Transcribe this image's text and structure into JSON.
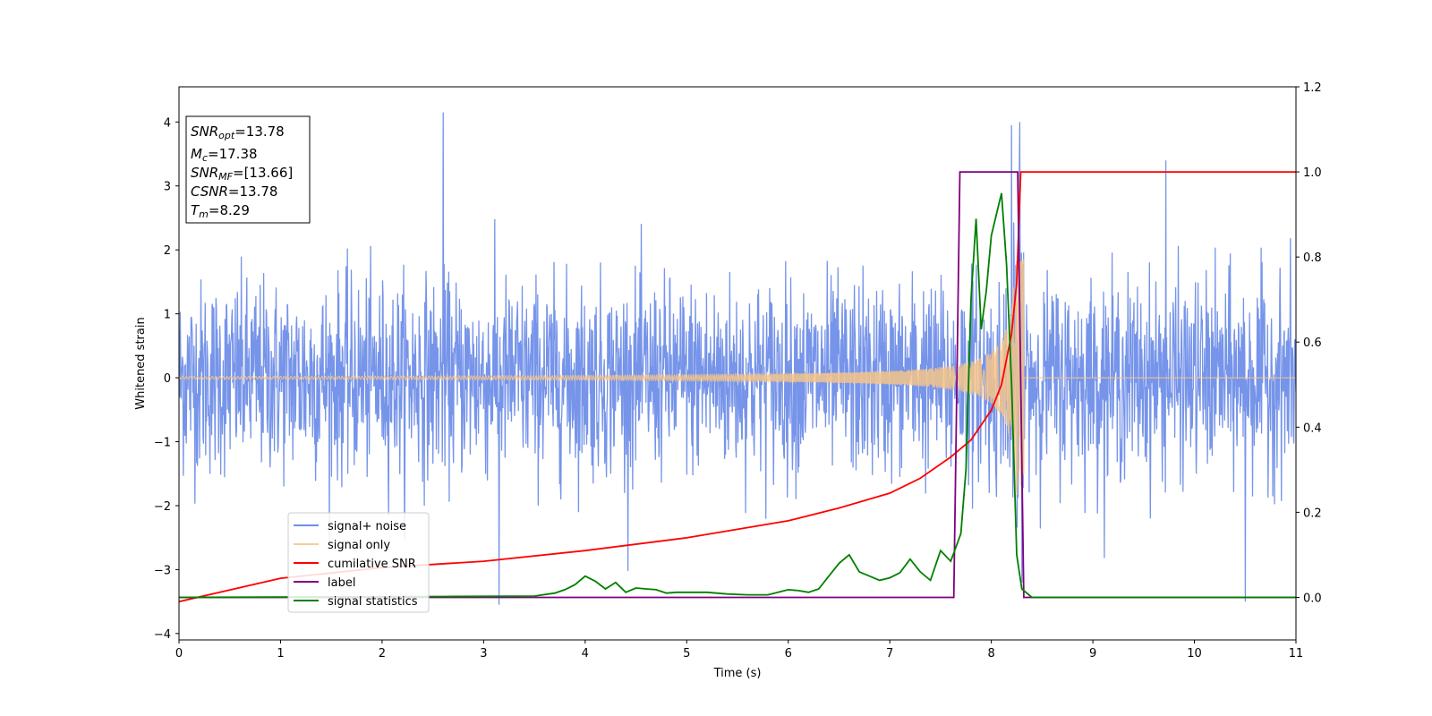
{
  "chart_data": {
    "type": "line",
    "xlabel": "Time (s)",
    "ylabel": "Whitened strain",
    "xlim": [
      0,
      11
    ],
    "ylim_left": [
      -4.1,
      4.55
    ],
    "ylim_right": [
      -0.1,
      1.2
    ],
    "xticks": [
      "0",
      "1",
      "2",
      "3",
      "4",
      "5",
      "6",
      "7",
      "8",
      "9",
      "10",
      "11"
    ],
    "yticks_left": [
      "−4",
      "−3",
      "−2",
      "−1",
      "0",
      "1",
      "2",
      "3",
      "4"
    ],
    "yticks_right": [
      "0.0",
      "0.2",
      "0.4",
      "0.6",
      "0.8",
      "1.0",
      "1.2"
    ],
    "grid": false,
    "legend_position": "lower-left",
    "info_box": {
      "lines": [
        {
          "base": "SNR",
          "sub": "opt",
          "value": "=13.78"
        },
        {
          "base": "M",
          "sub": "c",
          "value": "=17.38"
        },
        {
          "base": "SNR",
          "sub": "MF",
          "value": "=[13.66]"
        },
        {
          "base": "CSNR",
          "sub": "",
          "value": "=13.78"
        },
        {
          "base": "T",
          "sub": "m",
          "value": "=8.29"
        }
      ]
    },
    "series": [
      {
        "name": "signal+ noise",
        "axis": "left",
        "color": "#6f8ee8",
        "kind": "noise_plus_signal",
        "noise_band": [
          -1.6,
          1.9
        ],
        "notable_peaks": [
          [
            2.6,
            4.15
          ],
          [
            3.15,
            -3.55
          ],
          [
            8.2,
            3.95
          ],
          [
            8.28,
            4.0
          ],
          [
            10.5,
            -3.5
          ],
          [
            9.72,
            3.4
          ]
        ]
      },
      {
        "name": "signal only",
        "axis": "left",
        "color": "#f5c48a",
        "kind": "chirp",
        "merger_time": 8.29,
        "amplitude_at_merger": 1.85,
        "ringdown_end": 8.32
      },
      {
        "name": "cumilative SNR",
        "axis": "right",
        "color": "#ff0000",
        "x": [
          0,
          1,
          2,
          3,
          4,
          5,
          6,
          6.5,
          7,
          7.3,
          7.6,
          7.8,
          8.0,
          8.1,
          8.2,
          8.25,
          8.29,
          11
        ],
        "y": [
          -0.01,
          0.045,
          0.07,
          0.085,
          0.11,
          0.14,
          0.18,
          0.21,
          0.245,
          0.28,
          0.33,
          0.37,
          0.44,
          0.5,
          0.62,
          0.74,
          1.0,
          1.0
        ]
      },
      {
        "name": "label",
        "axis": "right",
        "color": "#800080",
        "x": [
          0,
          7.63,
          7.69,
          8.26,
          8.32,
          11
        ],
        "y": [
          0,
          0,
          1,
          1,
          0,
          0
        ]
      },
      {
        "name": "signal statistics",
        "axis": "right",
        "color": "#008000",
        "x": [
          0,
          2.6,
          3.5,
          3.7,
          3.8,
          3.9,
          4.0,
          4.1,
          4.2,
          4.3,
          4.4,
          4.5,
          4.6,
          4.7,
          4.8,
          4.9,
          5.0,
          5.2,
          5.4,
          5.6,
          5.8,
          6.0,
          6.1,
          6.2,
          6.3,
          6.4,
          6.5,
          6.6,
          6.7,
          6.8,
          6.9,
          7.0,
          7.1,
          7.2,
          7.3,
          7.4,
          7.5,
          7.6,
          7.7,
          7.75,
          7.8,
          7.85,
          7.9,
          7.95,
          8.0,
          8.05,
          8.1,
          8.15,
          8.2,
          8.25,
          8.3,
          8.4,
          11
        ],
        "y": [
          0,
          0.002,
          0.003,
          0.01,
          0.018,
          0.03,
          0.05,
          0.038,
          0.02,
          0.035,
          0.012,
          0.022,
          0.02,
          0.018,
          0.01,
          0.012,
          0.012,
          0.012,
          0.008,
          0.006,
          0.006,
          0.018,
          0.016,
          0.012,
          0.02,
          0.05,
          0.08,
          0.1,
          0.06,
          0.05,
          0.04,
          0.046,
          0.058,
          0.09,
          0.06,
          0.04,
          0.11,
          0.085,
          0.15,
          0.3,
          0.7,
          0.89,
          0.63,
          0.72,
          0.85,
          0.9,
          0.95,
          0.78,
          0.5,
          0.1,
          0.02,
          0.0,
          0.0
        ]
      }
    ]
  }
}
